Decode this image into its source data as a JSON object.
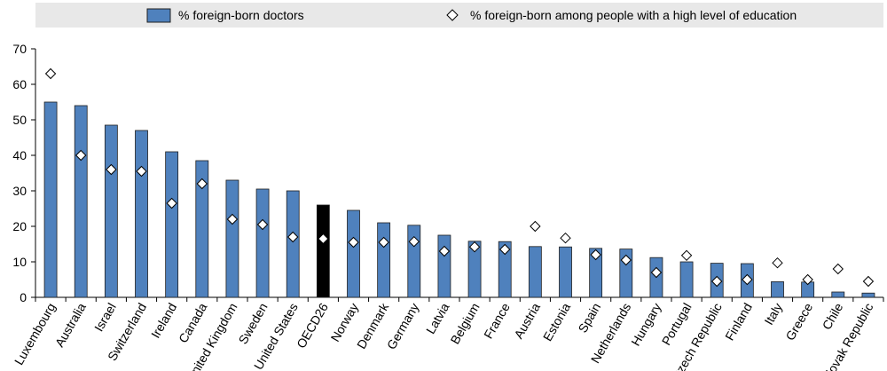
{
  "chart_data": {
    "type": "bar",
    "title": "",
    "xlabel": "",
    "ylabel": "",
    "ylim": [
      0,
      70
    ],
    "yticks": [
      0,
      10,
      20,
      30,
      40,
      50,
      60,
      70
    ],
    "grid": false,
    "legend_position": "top",
    "categories": [
      "Luxembourg",
      "Australia",
      "Israel",
      "Switzerland",
      "Ireland",
      "Canada",
      "United Kingdom",
      "Sweden",
      "United States",
      "OECD26",
      "Norway",
      "Denmark",
      "Germany",
      "Latvia",
      "Belgium",
      "France",
      "Austria",
      "Estonia",
      "Spain",
      "Netherlands",
      "Hungary",
      "Portugal",
      "Czech Republic",
      "Finland",
      "Italy",
      "Greece",
      "Chile",
      "Slovak Republic"
    ],
    "highlight_category": "OECD26",
    "series": [
      {
        "name": "% foreign-born doctors",
        "type": "bar",
        "color": "#4F81BD",
        "highlight_color": "#000000",
        "values": [
          55,
          54,
          48.5,
          47,
          41,
          38.5,
          33,
          30.5,
          30,
          26,
          24.5,
          21,
          20.3,
          17.5,
          15.8,
          15.7,
          14.3,
          14.2,
          13.8,
          13.6,
          11.2,
          10,
          9.6,
          9.5,
          4.4,
          4.3,
          1.5,
          1.2
        ]
      },
      {
        "name": "% foreign-born among people with a high level of education",
        "type": "marker",
        "marker": "diamond",
        "values": [
          63,
          40,
          36,
          35.5,
          26.5,
          32,
          22,
          20.5,
          17,
          16.5,
          15.5,
          15.5,
          15.7,
          13,
          14.2,
          13.5,
          20,
          16.7,
          12,
          10.5,
          7,
          11.8,
          4.5,
          5,
          9.7,
          5,
          8,
          4.5
        ]
      }
    ],
    "colors": {
      "bar": "#4F81BD",
      "bar_stroke": "#1F1F1F",
      "highlight": "#000000",
      "legend_bg": "#E8E8E8",
      "axis": "#000000"
    }
  }
}
